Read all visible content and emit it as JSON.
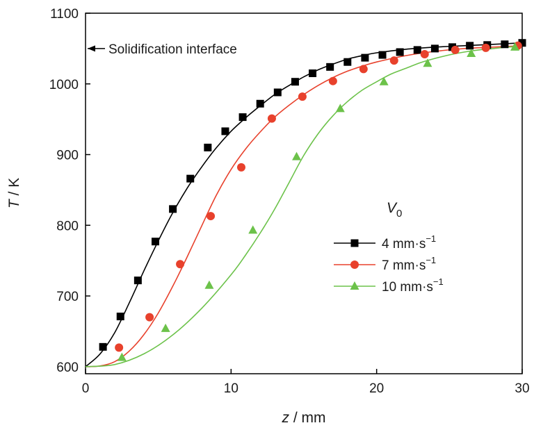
{
  "chart_data": {
    "type": "line",
    "xlabel": {
      "symbol": "z",
      "unit": " / mm"
    },
    "ylabel": {
      "symbol": "T",
      "unit": " / K"
    },
    "xlim": [
      0,
      30
    ],
    "ylim": [
      590,
      1100
    ],
    "xticks": [
      0,
      10,
      20,
      30
    ],
    "yticks": [
      600,
      700,
      800,
      900,
      1000,
      1100
    ],
    "grid": false,
    "annotation": {
      "text": "Solidification interface",
      "y": 1050
    },
    "legend": {
      "title_symbol": "V",
      "title_subscript": "0",
      "placement": "right"
    },
    "series": [
      {
        "name": "4 mm·s",
        "name_exponent": "−1",
        "color": "#000000",
        "marker": "square",
        "curve": [
          [
            0,
            600
          ],
          [
            1,
            618
          ],
          [
            2,
            648
          ],
          [
            3,
            690
          ],
          [
            4,
            735
          ],
          [
            5,
            778
          ],
          [
            6,
            818
          ],
          [
            7,
            853
          ],
          [
            8,
            883
          ],
          [
            9,
            910
          ],
          [
            10,
            933
          ],
          [
            11,
            952
          ],
          [
            12,
            969
          ],
          [
            13,
            985
          ],
          [
            14,
            998
          ],
          [
            15,
            1010
          ],
          [
            16,
            1020
          ],
          [
            17,
            1028
          ],
          [
            18,
            1035
          ],
          [
            19,
            1040
          ],
          [
            20,
            1044
          ],
          [
            22,
            1049
          ],
          [
            24,
            1052
          ],
          [
            26,
            1054
          ],
          [
            28,
            1056
          ],
          [
            30,
            1058
          ]
        ],
        "points": [
          [
            1.2,
            628
          ],
          [
            2.4,
            671
          ],
          [
            3.6,
            722
          ],
          [
            4.8,
            777
          ],
          [
            6.0,
            823
          ],
          [
            7.2,
            866
          ],
          [
            8.4,
            910
          ],
          [
            9.6,
            933
          ],
          [
            10.8,
            953
          ],
          [
            12.0,
            972
          ],
          [
            13.2,
            988
          ],
          [
            14.4,
            1003
          ],
          [
            15.6,
            1015
          ],
          [
            16.8,
            1024
          ],
          [
            18.0,
            1031
          ],
          [
            19.2,
            1037
          ],
          [
            20.4,
            1041
          ],
          [
            21.6,
            1045
          ],
          [
            22.8,
            1048
          ],
          [
            24.0,
            1050
          ],
          [
            25.2,
            1052
          ],
          [
            26.4,
            1054
          ],
          [
            27.6,
            1055
          ],
          [
            28.8,
            1056
          ],
          [
            30.0,
            1058
          ]
        ]
      },
      {
        "name": "7 mm·s",
        "name_exponent": "−1",
        "color": "#e8412c",
        "marker": "circle",
        "curve": [
          [
            0,
            600
          ],
          [
            1,
            601
          ],
          [
            2,
            607
          ],
          [
            3,
            622
          ],
          [
            4,
            645
          ],
          [
            5,
            676
          ],
          [
            6,
            714
          ],
          [
            7,
            756
          ],
          [
            8,
            800
          ],
          [
            9,
            843
          ],
          [
            10,
            879
          ],
          [
            11,
            908
          ],
          [
            12,
            932
          ],
          [
            13,
            953
          ],
          [
            14,
            970
          ],
          [
            15,
            985
          ],
          [
            16,
            998
          ],
          [
            17,
            1009
          ],
          [
            18,
            1018
          ],
          [
            19,
            1025
          ],
          [
            20,
            1031
          ],
          [
            22,
            1040
          ],
          [
            24,
            1046
          ],
          [
            26,
            1050
          ],
          [
            28,
            1052
          ],
          [
            30,
            1054
          ]
        ],
        "points": [
          [
            2.3,
            627
          ],
          [
            4.4,
            670
          ],
          [
            6.5,
            745
          ],
          [
            8.6,
            813
          ],
          [
            10.7,
            882
          ],
          [
            12.8,
            951
          ],
          [
            14.9,
            982
          ],
          [
            17.0,
            1004
          ],
          [
            19.1,
            1021
          ],
          [
            21.2,
            1033
          ],
          [
            23.3,
            1042
          ],
          [
            25.4,
            1048
          ],
          [
            27.5,
            1051
          ],
          [
            29.7,
            1054
          ]
        ]
      },
      {
        "name": "10 mm·s",
        "name_exponent": "−1",
        "color": "#6cc24a",
        "marker": "triangle",
        "curve": [
          [
            0,
            600
          ],
          [
            2,
            603
          ],
          [
            4,
            618
          ],
          [
            6,
            645
          ],
          [
            8,
            683
          ],
          [
            10,
            730
          ],
          [
            11,
            758
          ],
          [
            12,
            789
          ],
          [
            13,
            823
          ],
          [
            14,
            861
          ],
          [
            15,
            899
          ],
          [
            16,
            930
          ],
          [
            17,
            955
          ],
          [
            18,
            975
          ],
          [
            19,
            991
          ],
          [
            20,
            1003
          ],
          [
            21,
            1014
          ],
          [
            22,
            1022
          ],
          [
            23,
            1030
          ],
          [
            24,
            1036
          ],
          [
            25,
            1041
          ],
          [
            26,
            1045
          ],
          [
            27,
            1048
          ],
          [
            28,
            1050
          ],
          [
            29,
            1052
          ],
          [
            30,
            1053
          ]
        ],
        "points": [
          [
            2.5,
            613
          ],
          [
            5.5,
            654
          ],
          [
            8.5,
            715
          ],
          [
            11.5,
            793
          ],
          [
            14.5,
            897
          ],
          [
            17.5,
            965
          ],
          [
            20.5,
            1003
          ],
          [
            23.5,
            1029
          ],
          [
            26.5,
            1043
          ],
          [
            29.5,
            1052
          ]
        ]
      }
    ]
  }
}
